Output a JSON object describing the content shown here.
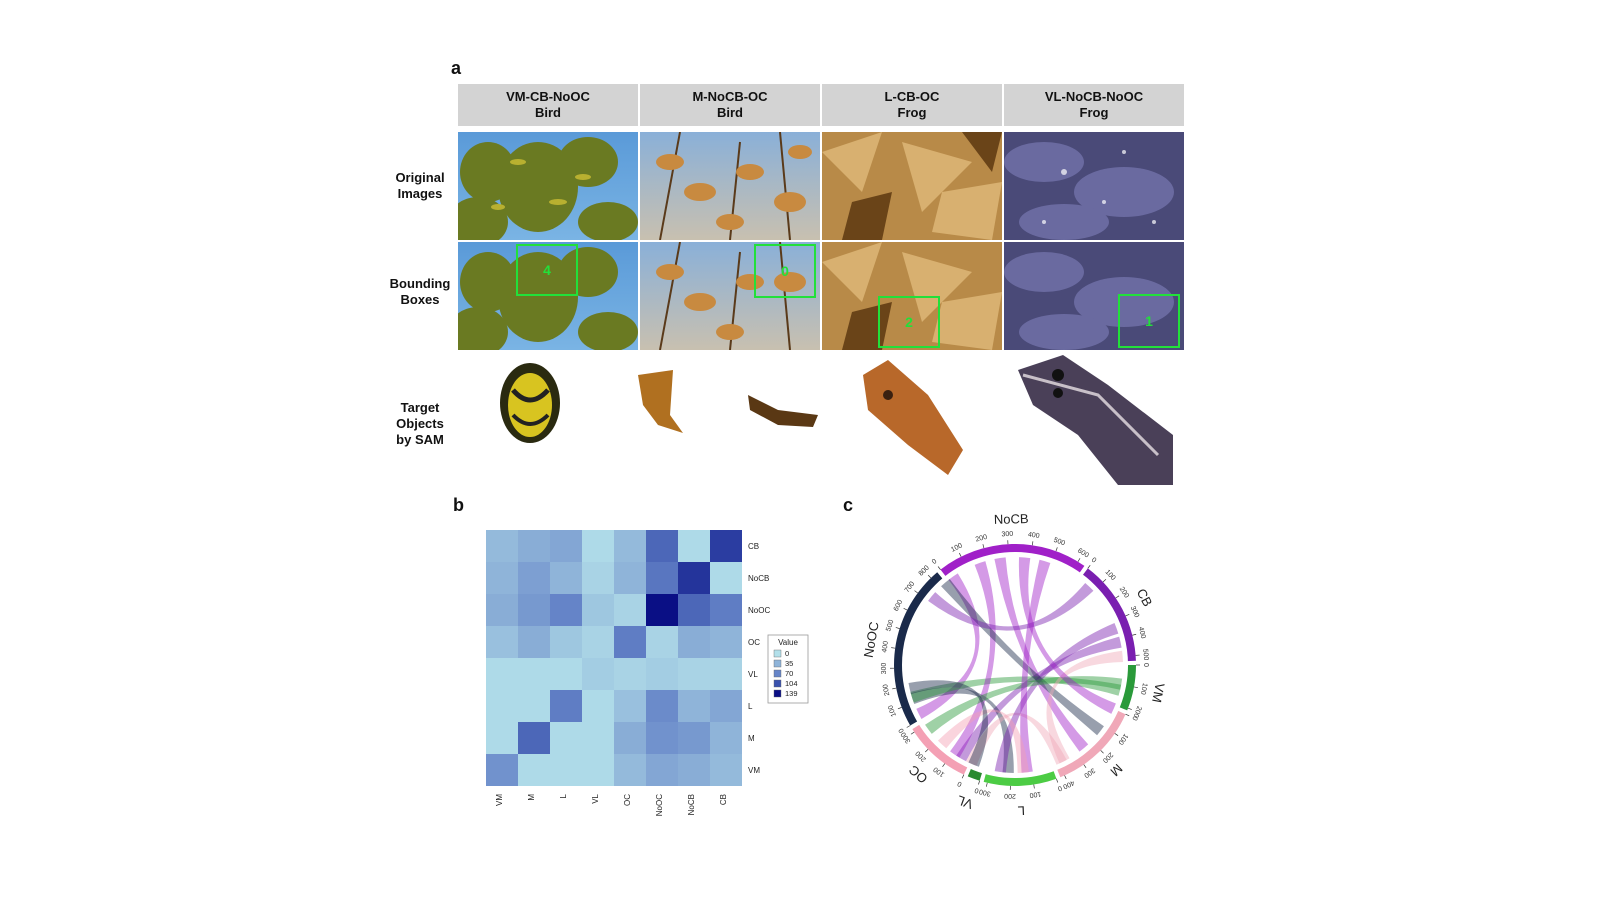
{
  "panels": {
    "a": "a",
    "b": "b",
    "c": "c"
  },
  "columns": [
    {
      "line1": "VM-CB-NoOC",
      "line2": "Bird",
      "bbox_num": "4"
    },
    {
      "line1": "M-NoCB-OC",
      "line2": "Bird",
      "bbox_num": "0"
    },
    {
      "line1": "L-CB-OC",
      "line2": "Frog",
      "bbox_num": "2"
    },
    {
      "line1": "VL-NoCB-NoOC",
      "line2": "Frog",
      "bbox_num": "1"
    }
  ],
  "rows": {
    "original": [
      "Original",
      "Images"
    ],
    "bbox": [
      "Bounding",
      "Boxes"
    ],
    "target": [
      "Target",
      "Objects",
      "by SAM"
    ]
  },
  "heatmap": {
    "row_labels": [
      "CB",
      "NoCB",
      "NoOC",
      "OC",
      "VL",
      "L",
      "M",
      "VM"
    ],
    "col_labels": [
      "VM",
      "M",
      "L",
      "VL",
      "OC",
      "NoOC",
      "NoCB",
      "CB"
    ],
    "legend_title": "Value",
    "legend_values": [
      "0",
      "35",
      "70",
      "104",
      "139"
    ],
    "legend_colors": [
      "#b3e0ea",
      "#8fb4d9",
      "#6685c8",
      "#3a52ad",
      "#0a0f85"
    ]
  },
  "chart_data": {
    "type": "heatmap",
    "rows": [
      "CB",
      "NoCB",
      "NoOC",
      "OC",
      "VL",
      "L",
      "M",
      "VM"
    ],
    "cols": [
      "VM",
      "M",
      "L",
      "VL",
      "OC",
      "NoOC",
      "NoCB",
      "CB"
    ],
    "values": [
      [
        30,
        40,
        45,
        5,
        30,
        90,
        5,
        115
      ],
      [
        35,
        50,
        35,
        10,
        35,
        80,
        120,
        5
      ],
      [
        40,
        55,
        70,
        20,
        10,
        139,
        90,
        75
      ],
      [
        25,
        40,
        20,
        10,
        75,
        10,
        40,
        35
      ],
      [
        5,
        5,
        5,
        15,
        10,
        15,
        10,
        10
      ],
      [
        5,
        5,
        75,
        5,
        25,
        65,
        35,
        45
      ],
      [
        5,
        90,
        5,
        5,
        40,
        60,
        55,
        35
      ],
      [
        60,
        5,
        5,
        5,
        30,
        45,
        40,
        30
      ]
    ],
    "legend": {
      "title": "Value",
      "ticks": [
        0,
        35,
        70,
        104,
        139
      ]
    }
  },
  "chord": {
    "sectors": [
      {
        "name": "NoCB",
        "color": "#a020c8",
        "ticks": [
          "0",
          "100",
          "200",
          "300",
          "400",
          "500",
          "600"
        ]
      },
      {
        "name": "CB",
        "color": "#7a1fb0",
        "ticks": [
          "0",
          "100",
          "200",
          "300",
          "400",
          "500"
        ]
      },
      {
        "name": "VM",
        "color": "#2a9a3a",
        "ticks": [
          "0",
          "100",
          "200"
        ]
      },
      {
        "name": "M",
        "color": "#f0a8b8",
        "ticks": [
          "0",
          "100",
          "200",
          "300",
          "400"
        ]
      },
      {
        "name": "L",
        "color": "#4ccc44",
        "ticks": [
          "0",
          "100",
          "200",
          "300"
        ]
      },
      {
        "name": "VL",
        "color": "#2a8a30",
        "ticks": [
          "0"
        ]
      },
      {
        "name": "OC",
        "color": "#f4a0b4",
        "ticks": [
          "0",
          "100",
          "200",
          "300"
        ]
      },
      {
        "name": "NoOC",
        "color": "#1a2a4a",
        "ticks": [
          "0",
          "100",
          "200",
          "300",
          "400",
          "500",
          "600",
          "700",
          "800"
        ]
      }
    ]
  }
}
